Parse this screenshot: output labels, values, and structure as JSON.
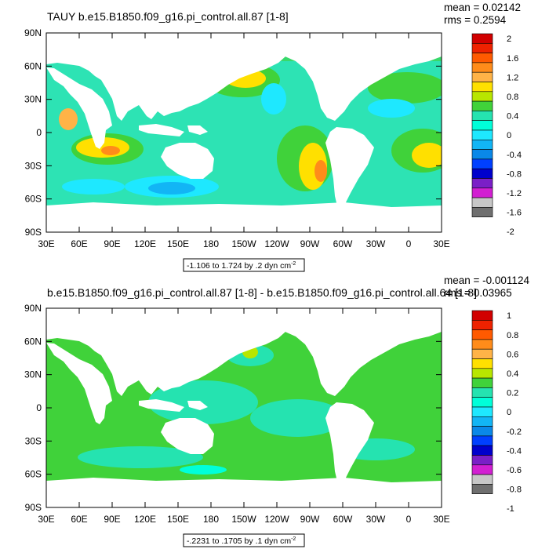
{
  "chart_data": [
    {
      "type": "heatmap",
      "title": "TAUY b.e15.B1850.f09_g16.pi_control.all.87 [1-8]",
      "stats": {
        "mean": "mean = 0.02142",
        "rms": "rms = 0.2594"
      },
      "range_label": {
        "text": "-1.106 to 1.724 by .2 dyn cm",
        "sup": "-2"
      },
      "x_ticks": [
        "30E",
        "60E",
        "90E",
        "120E",
        "150E",
        "180",
        "150W",
        "120W",
        "90W",
        "60W",
        "30W",
        "0",
        "30E"
      ],
      "y_ticks": [
        "90N",
        "60N",
        "30N",
        "0",
        "30S",
        "60S",
        "90S"
      ],
      "xlim": [
        30,
        390
      ],
      "ylim": [
        -90,
        90
      ],
      "colorbar": {
        "labels": [
          "2",
          "1.6",
          "1.2",
          "0.8",
          "0.4",
          "0",
          "-0.4",
          "-0.8",
          "-1.2",
          "-1.6",
          "-2"
        ],
        "colors": [
          "#d10000",
          "#ee2200",
          "#ff5a00",
          "#ff8c1a",
          "#ffb347",
          "#ffe000",
          "#b8e600",
          "#40d23a",
          "#25e3b0",
          "#00ffd9",
          "#1ee8ff",
          "#12b5f5",
          "#0a88e8",
          "#0040ff",
          "#0000cc",
          "#7a1fc7",
          "#d21fd2",
          "#c7c7c7",
          "#6f6f6f"
        ]
      }
    },
    {
      "type": "heatmap",
      "title": "b.e15.B1850.f09_g16.pi_control.all.87 [1-8] - b.e15.B1850.f09_g16.pi_control.all.64 [1-8]",
      "stats": {
        "mean": "mean = -0.001124",
        "rms": "rms = 0.03965"
      },
      "range_label": {
        "text": "-.2231 to .1705 by .1 dyn cm",
        "sup": "-2"
      },
      "x_ticks": [
        "30E",
        "60E",
        "90E",
        "120E",
        "150E",
        "180",
        "150W",
        "120W",
        "90W",
        "60W",
        "30W",
        "0",
        "30E"
      ],
      "y_ticks": [
        "90N",
        "60N",
        "30N",
        "0",
        "30S",
        "60S",
        "90S"
      ],
      "xlim": [
        30,
        390
      ],
      "ylim": [
        -90,
        90
      ],
      "colorbar": {
        "labels": [
          "1",
          "0.8",
          "0.6",
          "0.4",
          "0.2",
          "0",
          "-0.2",
          "-0.4",
          "-0.6",
          "-0.8",
          "-1"
        ],
        "colors": [
          "#d10000",
          "#ee2200",
          "#ff5a00",
          "#ff8c1a",
          "#ffb347",
          "#ffe000",
          "#b8e600",
          "#40d23a",
          "#25e3b0",
          "#00ffd9",
          "#1ee8ff",
          "#12b5f5",
          "#0a88e8",
          "#0040ff",
          "#0000cc",
          "#7a1fc7",
          "#d21fd2",
          "#c7c7c7",
          "#6f6f6f"
        ]
      }
    }
  ]
}
